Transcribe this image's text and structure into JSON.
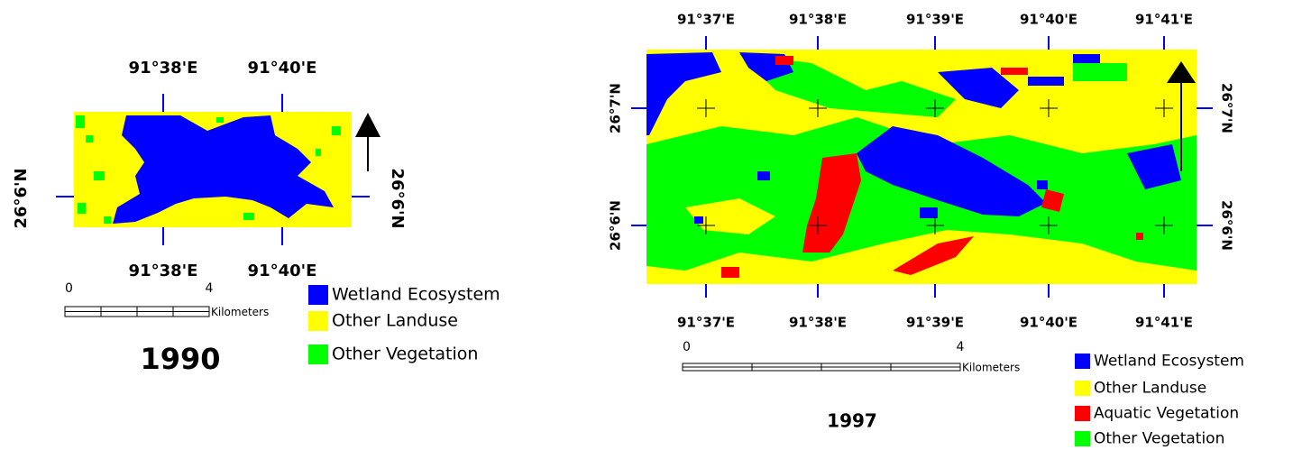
{
  "maps": [
    {
      "year": "1990",
      "top_labels": [
        "91°38'E",
        "91°40'E"
      ],
      "bottom_labels": [
        "91°38'E",
        "91°40'E"
      ],
      "left_labels": [
        "26°6'N"
      ],
      "right_labels": [
        "26°6'N"
      ],
      "scale": {
        "ticks": [
          0,
          4
        ],
        "unit": "Kilometers"
      },
      "legend": [
        {
          "label": "Wetland Ecosystem",
          "color": "#0000ff"
        },
        {
          "label": "Other Landuse",
          "color": "#ffff00"
        },
        {
          "label": "Other Vegetation",
          "color": "#00ff00"
        }
      ]
    },
    {
      "year": "1997",
      "top_labels": [
        "91°37'E",
        "91°38'E",
        "91°39'E",
        "91°40'E",
        "91°41'E"
      ],
      "bottom_labels": [
        "91°37'E",
        "91°38'E",
        "91°39'E",
        "91°40'E",
        "91°41'E"
      ],
      "left_labels": [
        "26°7'N",
        "26°6'N"
      ],
      "right_labels": [
        "26°7'N",
        "26°6'N"
      ],
      "scale": {
        "ticks": [
          0,
          4
        ],
        "unit": "Kilometers"
      },
      "legend": [
        {
          "label": "Wetland Ecosystem",
          "color": "#0000ff"
        },
        {
          "label": "Other Landuse",
          "color": "#ffff00"
        },
        {
          "label": "Aquatic Vegetation",
          "color": "#ff0000"
        },
        {
          "label": "Other Vegetation",
          "color": "#00ff00"
        }
      ]
    }
  ]
}
